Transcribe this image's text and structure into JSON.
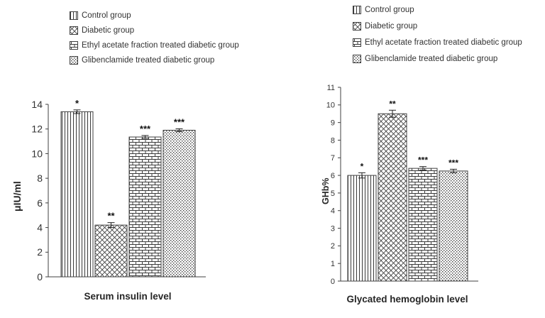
{
  "figure": {
    "legend_labels": [
      "Control group",
      "Diabetic group",
      "Ethyl acetate fraction treated diabetic group",
      "Glibenclamide treated diabetic group"
    ],
    "pattern_names": [
      "vertical-stripes",
      "diagonal-crosshatch",
      "brick",
      "dots"
    ],
    "ink_color": "#404040"
  },
  "chart_data": [
    {
      "type": "bar",
      "title": "Serum insulin level",
      "xlabel": "Serum insulin level",
      "ylabel": "μIU/ml",
      "categories": [
        "Control group",
        "Diabetic group",
        "Ethyl acetate fraction treated diabetic group",
        "Glibenclamide treated diabetic group"
      ],
      "values": [
        13.4,
        4.2,
        11.35,
        11.9
      ],
      "errors": [
        0.15,
        0.2,
        0.12,
        0.12
      ],
      "annotations": [
        "*",
        "**",
        "***",
        "***"
      ],
      "ylim": [
        0,
        14
      ],
      "ytick_step": 2,
      "grid": false,
      "legend_position": "top"
    },
    {
      "type": "bar",
      "title": "Glycated hemoglobin level",
      "xlabel": "Glycated hemoglobin level",
      "ylabel": "GHb%",
      "categories": [
        "Control group",
        "Diabetic group",
        "Ethyl acetate fraction treated diabetic group",
        "Glibenclamide treated diabetic group"
      ],
      "values": [
        6.0,
        9.5,
        6.4,
        6.25
      ],
      "errors": [
        0.15,
        0.2,
        0.1,
        0.1
      ],
      "annotations": [
        "*",
        "**",
        "***",
        "***"
      ],
      "ylim": [
        0,
        11
      ],
      "ytick_step": 1,
      "grid": false,
      "legend_position": "top"
    }
  ]
}
